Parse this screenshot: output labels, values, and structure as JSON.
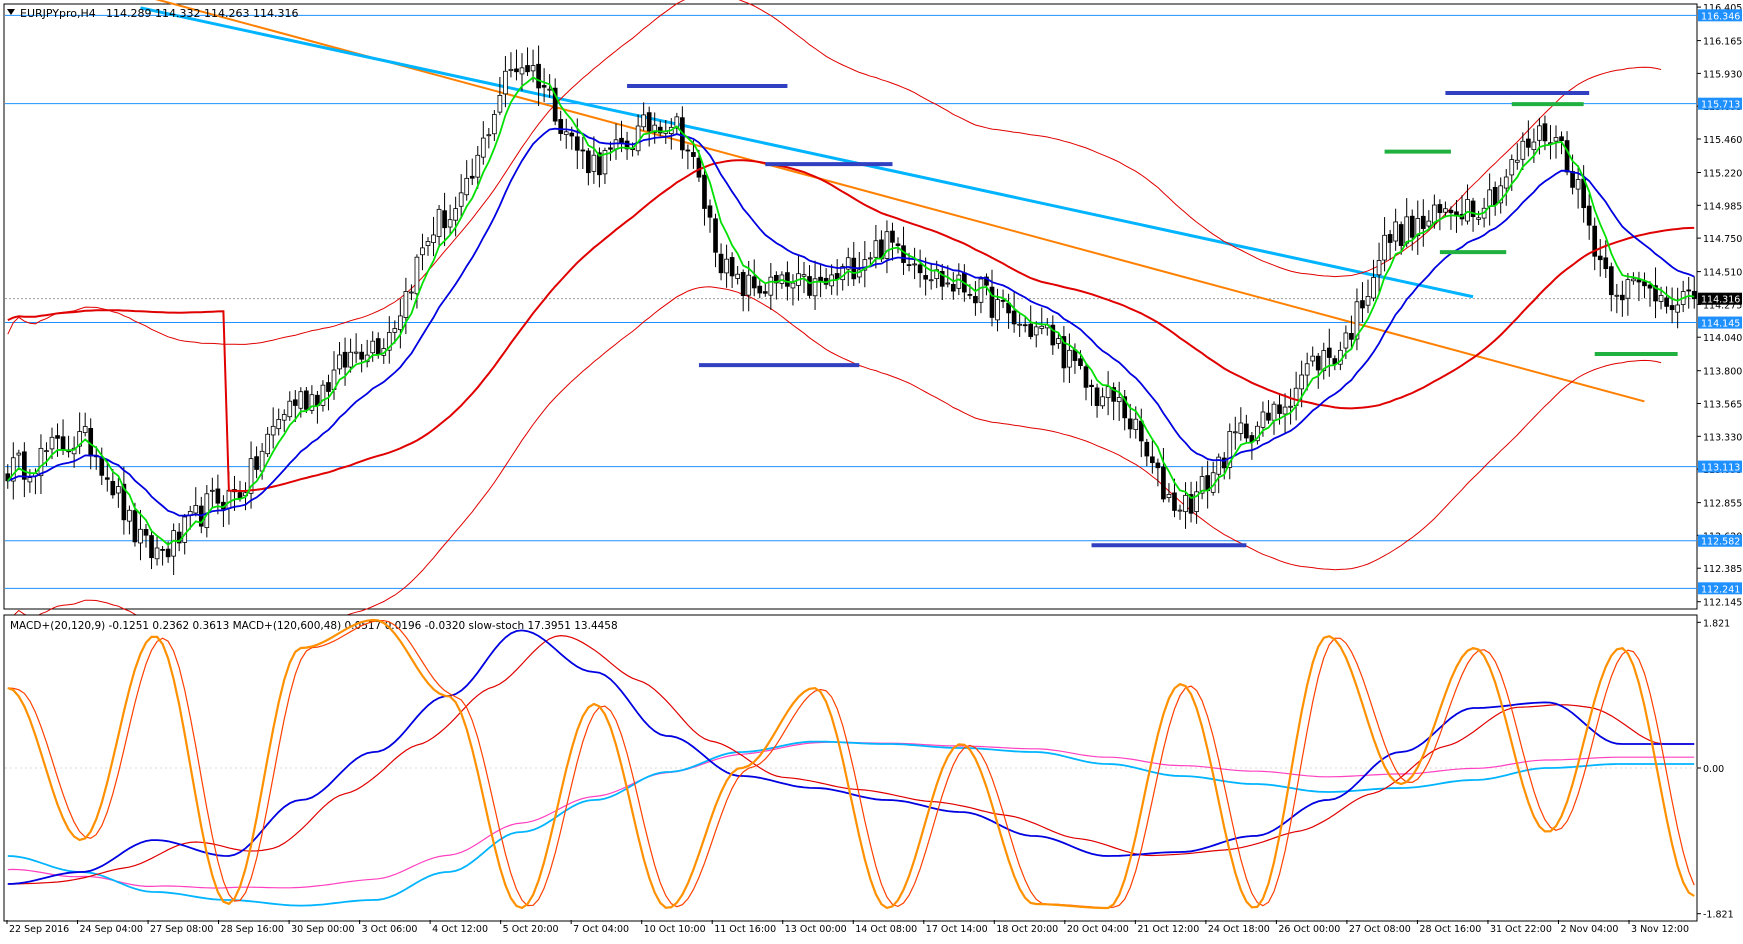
{
  "window": {
    "title_symbol": "EURJPYpro,H4",
    "ohlc_text": "114.289 114.332 114.263 114.316",
    "menu_arrow_icon": "triangle-down-icon"
  },
  "colors": {
    "candle_bull": "#ffffff",
    "candle_bear": "#000000",
    "hline": "#1e90ff",
    "price_tag": "#1e90ff",
    "ema_green": "#00e000",
    "ema_blue": "#0000e0",
    "ema_red": "#e00000",
    "ma_cyan": "#00b4ff",
    "trend_orange": "#ff8000",
    "marker_blue": "#3040c0",
    "marker_green": "#20b040",
    "macd_blue": "#0000e0",
    "macd_red": "#e00000",
    "macd_cyan": "#00b4ff",
    "macd_magenta": "#ff40c0",
    "stoch_orange": "#ff9000",
    "stoch_red": "#ff4000"
  },
  "chart_data": [
    {
      "type": "candlestick",
      "title": "EURJPYpro,H4",
      "y_ticks": [
        "116.405",
        "116.165",
        "115.930",
        "115.695",
        "115.460",
        "115.220",
        "114.985",
        "114.750",
        "114.510",
        "114.275",
        "114.040",
        "113.800",
        "113.565",
        "113.330",
        "113.095",
        "112.855",
        "112.620",
        "112.385",
        "112.145"
      ],
      "ylim": [
        112.1,
        116.42
      ],
      "x_labels": [
        "22 Sep 2016",
        "24 Sep 04:00",
        "27 Sep 08:00",
        "28 Sep 16:00",
        "30 Sep 00:00",
        "3 Oct 06:00",
        "4 Oct 12:00",
        "5 Oct 20:00",
        "7 Oct 04:00",
        "10 Oct 10:00",
        "11 Oct 16:00",
        "13 Oct 00:00",
        "14 Oct 08:00",
        "17 Oct 14:00",
        "18 Oct 20:00",
        "20 Oct 04:00",
        "21 Oct 12:00",
        "24 Oct 18:00",
        "26 Oct 00:00",
        "27 Oct 08:00",
        "28 Oct 16:00",
        "31 Oct 22:00",
        "2 Nov 04:00",
        "3 Nov 12:00"
      ],
      "close_anchors": [
        113.1,
        113.3,
        112.5,
        112.9,
        113.6,
        114.0,
        114.9,
        116.0,
        115.3,
        115.6,
        114.4,
        114.4,
        114.7,
        114.4,
        114.1,
        113.6,
        112.85,
        113.4,
        113.9,
        114.8,
        115.0,
        115.5,
        114.4,
        114.32
      ],
      "horizontal_levels": [
        {
          "price": 116.346,
          "label": "116.346"
        },
        {
          "price": 115.713,
          "label": "115.713"
        },
        {
          "price": 114.145,
          "label": "114.145"
        },
        {
          "price": 113.113,
          "label": "113.113"
        },
        {
          "price": 112.582,
          "label": "112.582"
        },
        {
          "price": 112.241,
          "label": "112.241"
        }
      ],
      "current_price": {
        "price": 114.316,
        "label": "114.316"
      },
      "trendlines": [
        {
          "name": "orange-trendline",
          "from": {
            "bar": 26,
            "price": 116.47
          },
          "to": {
            "bar": 296,
            "price": 113.58
          }
        },
        {
          "name": "cyan-moving-average",
          "from": {
            "bar": 24,
            "price": 116.4
          },
          "to": {
            "bar": 265,
            "price": 114.33
          }
        }
      ],
      "markers": [
        {
          "color": "blue",
          "bar_from": 112,
          "bar_to": 141,
          "price": 115.84
        },
        {
          "color": "blue",
          "bar_from": 137,
          "bar_to": 160,
          "price": 115.28
        },
        {
          "color": "blue",
          "bar_from": 125,
          "bar_to": 154,
          "price": 113.84
        },
        {
          "color": "blue",
          "bar_from": 196,
          "bar_to": 224,
          "price": 112.55
        },
        {
          "color": "green",
          "bar_from": 249,
          "bar_to": 261,
          "price": 115.37
        },
        {
          "color": "green",
          "bar_from": 259,
          "bar_to": 271,
          "price": 114.65
        },
        {
          "color": "blue",
          "bar_from": 260,
          "bar_to": 286,
          "price": 115.79
        },
        {
          "color": "green",
          "bar_from": 272,
          "bar_to": 285,
          "price": 115.71
        },
        {
          "color": "green",
          "bar_from": 287,
          "bar_to": 302,
          "price": 113.92
        }
      ]
    },
    {
      "type": "line",
      "title": "MACD+(20,120,9) -0.1251 0.2362 0.3613  MACD+(120,600,48) 0.0517 0.0196 -0.0320  slow-stoch 17.3951 13.4458",
      "y_ticks": [
        "1.821",
        "0.00",
        "-1.821"
      ],
      "ylim": [
        -1.9,
        1.9
      ],
      "series": [
        {
          "name": "MACD+(20,120,9)",
          "anchors": [
            -1.45,
            -1.3,
            -0.9,
            -1.1,
            -0.4,
            0.2,
            0.9,
            1.72,
            1.2,
            0.4,
            -0.1,
            -0.25,
            -0.4,
            -0.55,
            -0.85,
            -1.1,
            -1.05,
            -0.85,
            -0.4,
            0.2,
            0.75,
            0.82,
            0.3,
            0.3
          ]
        },
        {
          "name": "MACD+(120,600,48)",
          "anchors": [
            -1.1,
            -1.3,
            -1.55,
            -1.65,
            -1.72,
            -1.65,
            -1.3,
            -0.8,
            -0.4,
            -0.05,
            0.2,
            0.33,
            0.3,
            0.25,
            0.2,
            0.05,
            -0.1,
            -0.2,
            -0.3,
            -0.25,
            -0.15,
            0.0,
            0.05,
            0.05
          ]
        },
        {
          "name": "slow-stoch",
          "anchors": [
            1.0,
            -0.9,
            1.65,
            -1.7,
            1.5,
            1.85,
            0.9,
            -1.75,
            0.8,
            -1.75,
            0.0,
            1.0,
            -1.75,
            0.3,
            -1.7,
            -1.75,
            1.05,
            -1.75,
            1.65,
            -0.2,
            1.5,
            -0.8,
            1.5,
            -1.6
          ]
        }
      ]
    }
  ]
}
